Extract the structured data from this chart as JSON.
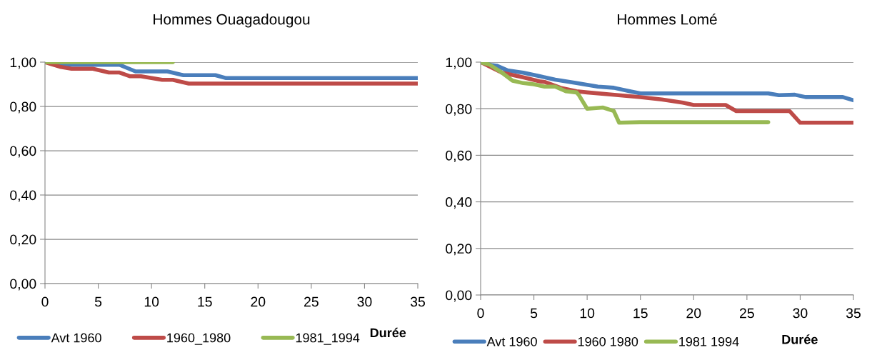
{
  "chart_data": [
    {
      "type": "line",
      "title": "Hommes Ouagadougou",
      "xlabel": "Durée",
      "xlim": [
        0,
        35
      ],
      "xticks": [
        0,
        5,
        10,
        15,
        20,
        25,
        30,
        35
      ],
      "ylim": [
        0,
        1
      ],
      "yticks": [
        {
          "value": 0,
          "label": "0,00"
        },
        {
          "value": 0.2,
          "label": "0,20"
        },
        {
          "value": 0.4,
          "label": "0,40"
        },
        {
          "value": 0.6,
          "label": "0,60"
        },
        {
          "value": 0.8,
          "label": "0,80"
        },
        {
          "value": 1,
          "label": "1,00"
        }
      ],
      "grid": "y",
      "legend": "bottom",
      "series": [
        {
          "name": "Avt 1960",
          "color": "#4a7ebb",
          "x": [
            0,
            2.5,
            7,
            8.5,
            11.5,
            13,
            16,
            17,
            35
          ],
          "values": [
            1.0,
            0.988,
            0.988,
            0.958,
            0.958,
            0.941,
            0.941,
            0.928,
            0.928
          ]
        },
        {
          "name": "1960_1980",
          "color": "#be4b48",
          "x": [
            0,
            1.5,
            2.5,
            4.5,
            6,
            7,
            8,
            9,
            11,
            12,
            13.5,
            35
          ],
          "values": [
            1.0,
            0.978,
            0.97,
            0.97,
            0.953,
            0.953,
            0.936,
            0.936,
            0.92,
            0.92,
            0.903,
            0.903
          ]
        },
        {
          "name": "1981_1994",
          "color": "#98b954",
          "x": [
            0,
            12
          ],
          "values": [
            1.0,
            1.0
          ]
        }
      ]
    },
    {
      "type": "line",
      "title": "Hommes Lomé",
      "xlabel": "Durée",
      "xlim": [
        0,
        35
      ],
      "xticks": [
        0,
        5,
        10,
        15,
        20,
        25,
        30,
        35
      ],
      "ylim": [
        0,
        1
      ],
      "yticks": [
        {
          "value": 0,
          "label": "0,00"
        },
        {
          "value": 0.2,
          "label": "0,20"
        },
        {
          "value": 0.4,
          "label": "0,40"
        },
        {
          "value": 0.6,
          "label": "0,60"
        },
        {
          "value": 0.8,
          "label": "0,80"
        },
        {
          "value": 1,
          "label": "1,00"
        }
      ],
      "grid": "y",
      "legend": "bottom",
      "series": [
        {
          "name": "Avt 1960",
          "color": "#4a7ebb",
          "x": [
            0,
            1,
            1.5,
            2.5,
            4,
            5.5,
            7,
            9,
            11,
            12.5,
            14,
            15,
            20,
            27,
            28,
            29.5,
            30.5,
            34,
            35
          ],
          "values": [
            1.0,
            0.988,
            0.985,
            0.965,
            0.955,
            0.94,
            0.925,
            0.91,
            0.895,
            0.89,
            0.875,
            0.866,
            0.866,
            0.866,
            0.858,
            0.86,
            0.85,
            0.85,
            0.836
          ]
        },
        {
          "name": "1960 1980",
          "color": "#be4b48",
          "x": [
            0,
            2,
            4,
            5.5,
            6,
            7.5,
            9,
            10,
            12,
            15,
            17,
            19,
            20,
            23,
            24,
            27,
            29,
            30,
            35
          ],
          "values": [
            1.0,
            0.955,
            0.935,
            0.918,
            0.915,
            0.89,
            0.875,
            0.87,
            0.862,
            0.85,
            0.84,
            0.826,
            0.816,
            0.816,
            0.79,
            0.79,
            0.79,
            0.74,
            0.74
          ]
        },
        {
          "name": "1981 1994",
          "color": "#98b954",
          "x": [
            0,
            0.8,
            2,
            3,
            4,
            5,
            6,
            7,
            8,
            9,
            9.2,
            10,
            11.5,
            12.5,
            13,
            15,
            27
          ],
          "values": [
            1.0,
            0.99,
            0.955,
            0.92,
            0.91,
            0.905,
            0.895,
            0.895,
            0.875,
            0.87,
            0.86,
            0.8,
            0.805,
            0.79,
            0.74,
            0.742,
            0.742
          ]
        }
      ]
    }
  ]
}
